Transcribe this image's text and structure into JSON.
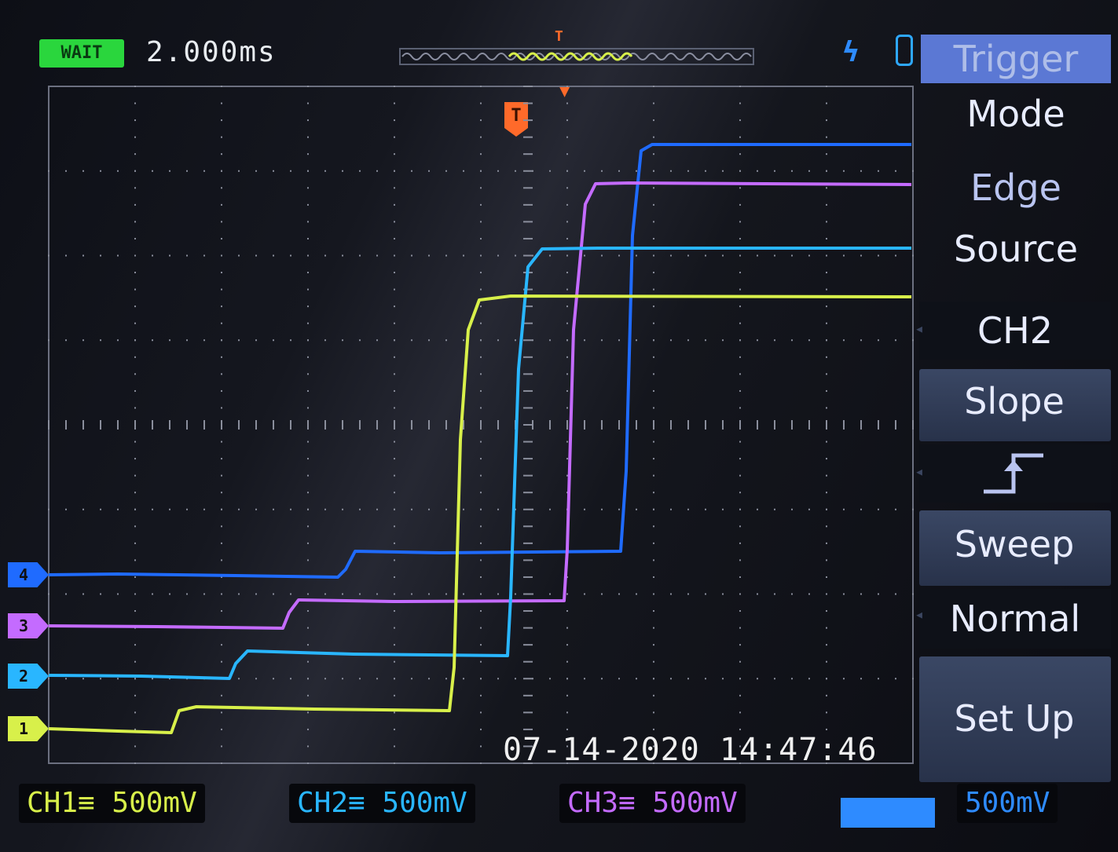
{
  "header": {
    "run_state": "WAIT",
    "timebase": "2.000ms"
  },
  "colors": {
    "ch1": "#d8f04a",
    "ch2": "#29b6ff",
    "ch3": "#c46bff",
    "ch4": "#1f6bff",
    "trigger": "#ff6a2a",
    "menu_title_bg": "#5b78d4"
  },
  "icons": {
    "edge": "edge-trigger-icon",
    "usb": "usb-icon",
    "slope": "rising-slope-icon"
  },
  "channels": [
    {
      "id": "ch1",
      "marker": "1",
      "scale_label": "CH1",
      "scale": "500mV"
    },
    {
      "id": "ch2",
      "marker": "2",
      "scale_label": "CH2",
      "scale": "500mV"
    },
    {
      "id": "ch3",
      "marker": "3",
      "scale_label": "CH3",
      "scale": "500mV"
    },
    {
      "id": "ch4",
      "marker": "4",
      "scale": "500mV"
    }
  ],
  "coupling_symbol": "≡",
  "timestamp": "07-14-2020 14:47:46",
  "trigger_menu": {
    "title": "Trigger",
    "mode_label": "Mode",
    "mode_value": "Edge",
    "source_label": "Source",
    "source_value": "CH2",
    "slope_label": "Slope",
    "sweep_label": "Sweep",
    "sweep_value": "Normal",
    "setup_label": "Set Up"
  },
  "trigger_marker": "T"
}
